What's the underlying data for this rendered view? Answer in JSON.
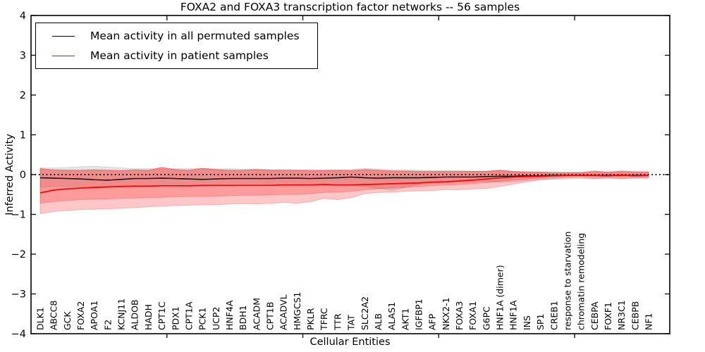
{
  "legend": {
    "items": [
      {
        "label": "Mean activity in all permuted samples",
        "color": "#000000"
      },
      {
        "label": "Mean activity in patient samples",
        "color": "#ff0000"
      }
    ],
    "position": "upper left"
  },
  "chart_data": {
    "type": "line",
    "title": "FOXA2 and FOXA3 transcription factor networks -- 56 samples",
    "xlabel": "Cellular Entities",
    "ylabel": "Inferred Activity",
    "ylim": [
      -4,
      4
    ],
    "x_range": [
      0,
      47
    ],
    "x_major_ticks": [
      10,
      20,
      30,
      40
    ],
    "grid": false,
    "zero_line": {
      "value": 0,
      "style": "dotted",
      "color": "#000000"
    },
    "yticks": [
      {
        "value": 4,
        "label": "4"
      },
      {
        "value": 3,
        "label": "3"
      },
      {
        "value": 2,
        "label": "2"
      },
      {
        "value": 1,
        "label": "1"
      },
      {
        "value": 0,
        "label": "0"
      },
      {
        "value": -1,
        "label": "−1"
      },
      {
        "value": -2,
        "label": "−2"
      },
      {
        "value": -3,
        "label": "−3"
      },
      {
        "value": -4,
        "label": "−4"
      }
    ],
    "categories": [
      "DLK1",
      "ABCC8",
      "GCK",
      "FOXA2",
      "APOA1",
      "F2",
      "KCNJ11",
      "ALDOB",
      "HADH",
      "CPT1C",
      "PDX1",
      "CPT1A",
      "PCK1",
      "UCP2",
      "HNF4A",
      "BDH1",
      "ACADM",
      "CPT1B",
      "ACADVL",
      "HMGCS1",
      "PKLR",
      "TFRC",
      "TTR",
      "TAT",
      "SLC2A2",
      "ALB",
      "ALAS1",
      "AKT1",
      "IGFBP1",
      "AFP",
      "NKX2-1",
      "FOXA3",
      "FOXA1",
      "G6PC",
      "HNF1A (dimer)",
      "HNF1A",
      "INS",
      "SP1",
      "CREB1",
      "response to starvation",
      "chromatin remodeling",
      "CEBPA",
      "FOXF1",
      "NR3C1",
      "CEBPB",
      "NF1"
    ],
    "series": [
      {
        "name": "Mean activity in all permuted samples",
        "color": "#000000",
        "values": [
          -0.08,
          -0.09,
          -0.1,
          -0.11,
          -0.13,
          -0.14,
          -0.12,
          -0.1,
          -0.1,
          -0.09,
          -0.1,
          -0.11,
          -0.12,
          -0.11,
          -0.1,
          -0.1,
          -0.1,
          -0.1,
          -0.09,
          -0.09,
          -0.1,
          -0.09,
          -0.08,
          -0.06,
          -0.08,
          -0.09,
          -0.08,
          -0.08,
          -0.08,
          -0.07,
          -0.06,
          -0.06,
          -0.06,
          -0.05,
          -0.04,
          -0.04,
          -0.03,
          -0.03,
          -0.02,
          -0.02,
          -0.02,
          -0.02,
          -0.02,
          -0.02,
          -0.02,
          -0.02
        ]
      },
      {
        "name": "Mean activity in patient samples",
        "color": "#ff0000",
        "values": [
          -0.46,
          -0.39,
          -0.36,
          -0.34,
          -0.32,
          -0.31,
          -0.3,
          -0.29,
          -0.29,
          -0.28,
          -0.28,
          -0.28,
          -0.27,
          -0.27,
          -0.27,
          -0.27,
          -0.27,
          -0.27,
          -0.26,
          -0.26,
          -0.26,
          -0.25,
          -0.26,
          -0.26,
          -0.25,
          -0.24,
          -0.23,
          -0.22,
          -0.21,
          -0.19,
          -0.18,
          -0.16,
          -0.14,
          -0.11,
          -0.08,
          -0.06,
          -0.05,
          -0.04,
          -0.03,
          -0.02,
          -0.02,
          -0.02,
          -0.03,
          -0.01,
          -0.03,
          -0.02
        ]
      }
    ],
    "bands": [
      {
        "name": "permuted-samples-band",
        "color": "#555555",
        "opacity": 0.16,
        "upper": [
          0.17,
          0.17,
          0.18,
          0.2,
          0.21,
          0.19,
          0.17,
          0.15,
          0.15,
          0.14,
          0.15,
          0.16,
          0.15,
          0.14,
          0.15,
          0.14,
          0.14,
          0.13,
          0.13,
          0.12,
          0.13,
          0.12,
          0.12,
          0.13,
          0.16,
          0.14,
          0.12,
          0.12,
          0.11,
          0.1,
          0.1,
          0.1,
          0.09,
          0.09,
          0.1,
          0.08,
          0.08,
          0.07,
          0.07,
          0.06,
          0.06,
          0.06,
          0.07,
          0.06,
          0.06,
          0.06
        ],
        "lower": [
          -0.32,
          -0.3,
          -0.3,
          -0.32,
          -0.35,
          -0.33,
          -0.31,
          -0.3,
          -0.29,
          -0.28,
          -0.29,
          -0.3,
          -0.3,
          -0.29,
          -0.29,
          -0.28,
          -0.28,
          -0.27,
          -0.26,
          -0.25,
          -0.26,
          -0.25,
          -0.25,
          -0.26,
          -0.3,
          -0.35,
          -0.4,
          -0.32,
          -0.25,
          -0.22,
          -0.2,
          -0.19,
          -0.18,
          -0.17,
          -0.2,
          -0.18,
          -0.15,
          -0.13,
          -0.12,
          -0.11,
          -0.1,
          -0.11,
          -0.1,
          -0.11,
          -0.1,
          -0.1
        ]
      },
      {
        "name": "patient-samples-band-outer",
        "color": "#ff0000",
        "opacity": 0.22,
        "upper": [
          0.15,
          0.12,
          0.11,
          0.11,
          0.12,
          0.11,
          0.1,
          0.12,
          0.11,
          0.18,
          0.13,
          0.11,
          0.16,
          0.13,
          0.11,
          0.11,
          0.13,
          0.11,
          0.11,
          0.11,
          0.1,
          0.1,
          0.11,
          0.1,
          0.13,
          0.11,
          0.09,
          0.09,
          0.08,
          0.08,
          0.08,
          0.08,
          0.08,
          0.08,
          0.11,
          0.08,
          0.06,
          0.06,
          0.05,
          0.05,
          0.05,
          0.09,
          0.06,
          0.09,
          0.07,
          0.07
        ],
        "lower": [
          -0.98,
          -0.93,
          -0.9,
          -0.88,
          -0.87,
          -0.86,
          -0.85,
          -0.83,
          -0.81,
          -0.79,
          -0.78,
          -0.77,
          -0.76,
          -0.76,
          -0.74,
          -0.73,
          -0.74,
          -0.72,
          -0.7,
          -0.72,
          -0.68,
          -0.6,
          -0.63,
          -0.58,
          -0.48,
          -0.45,
          -0.44,
          -0.42,
          -0.41,
          -0.4,
          -0.38,
          -0.38,
          -0.36,
          -0.35,
          -0.3,
          -0.24,
          -0.18,
          -0.13,
          -0.1,
          -0.08,
          -0.07,
          -0.1,
          -0.08,
          -0.1,
          -0.08,
          -0.08
        ]
      },
      {
        "name": "patient-samples-band-inner",
        "color": "#ff0000",
        "opacity": 0.22,
        "upper": [
          0.15,
          0.12,
          0.11,
          0.11,
          0.12,
          0.11,
          0.1,
          0.12,
          0.11,
          0.18,
          0.13,
          0.11,
          0.16,
          0.13,
          0.11,
          0.11,
          0.13,
          0.11,
          0.11,
          0.11,
          0.1,
          0.1,
          0.11,
          0.1,
          0.13,
          0.11,
          0.09,
          0.09,
          0.08,
          0.08,
          0.08,
          0.08,
          0.08,
          0.08,
          0.11,
          0.08,
          0.06,
          0.06,
          0.05,
          0.05,
          0.05,
          0.09,
          0.06,
          0.09,
          0.07,
          0.07
        ],
        "lower": [
          -0.72,
          -0.68,
          -0.65,
          -0.63,
          -0.62,
          -0.61,
          -0.6,
          -0.59,
          -0.58,
          -0.57,
          -0.56,
          -0.55,
          -0.55,
          -0.54,
          -0.53,
          -0.52,
          -0.52,
          -0.51,
          -0.5,
          -0.5,
          -0.48,
          -0.45,
          -0.44,
          -0.42,
          -0.38,
          -0.35,
          -0.34,
          -0.32,
          -0.3,
          -0.28,
          -0.26,
          -0.25,
          -0.23,
          -0.2,
          -0.17,
          -0.14,
          -0.11,
          -0.08,
          -0.06,
          -0.05,
          -0.04,
          -0.06,
          -0.05,
          -0.06,
          -0.05,
          -0.05
        ]
      }
    ]
  }
}
